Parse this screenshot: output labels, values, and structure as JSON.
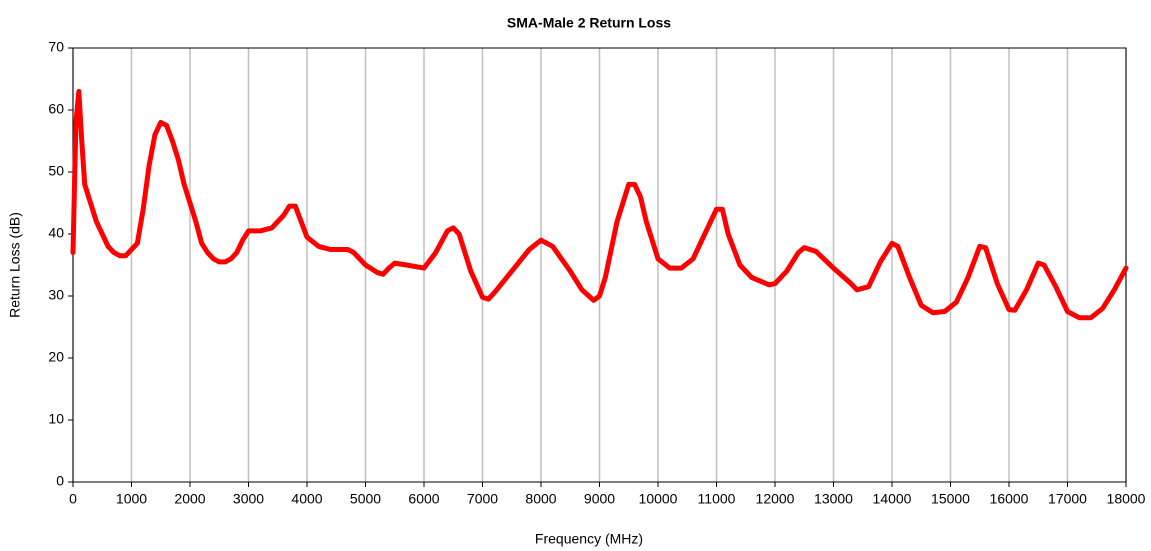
{
  "chart_data": {
    "type": "line",
    "title": "SMA-Male 2 Return Loss",
    "xlabel": "Frequency (MHz)",
    "ylabel": "Return Loss (dB)",
    "x": [
      0,
      50,
      100,
      150,
      200,
      300,
      400,
      500,
      600,
      700,
      800,
      900,
      1000,
      1100,
      1200,
      1300,
      1400,
      1500,
      1600,
      1700,
      1800,
      1900,
      2000,
      2100,
      2200,
      2300,
      2400,
      2500,
      2600,
      2700,
      2800,
      2900,
      3000,
      3200,
      3400,
      3600,
      3700,
      3800,
      3900,
      4000,
      4200,
      4400,
      4700,
      4800,
      5000,
      5200,
      5300,
      5400,
      5500,
      5700,
      6000,
      6200,
      6400,
      6500,
      6600,
      6800,
      7000,
      7100,
      7200,
      7500,
      7800,
      8000,
      8200,
      8500,
      8700,
      8900,
      9000,
      9100,
      9300,
      9500,
      9600,
      9700,
      9800,
      10000,
      10200,
      10400,
      10600,
      10800,
      11000,
      11100,
      11200,
      11400,
      11600,
      11900,
      12000,
      12200,
      12400,
      12500,
      12700,
      13000,
      13300,
      13400,
      13600,
      13800,
      14000,
      14100,
      14300,
      14500,
      14700,
      14900,
      15100,
      15300,
      15500,
      15600,
      15800,
      16000,
      16100,
      16300,
      16500,
      16600,
      16800,
      17000,
      17200,
      17400,
      17600,
      17800,
      18000
    ],
    "series": [
      {
        "name": "Return Loss",
        "color": "#ff0000",
        "values": [
          37,
          58,
          63,
          55,
          48,
          45,
          42,
          40,
          38,
          37,
          36.5,
          36.5,
          37.5,
          38.5,
          44,
          51,
          56,
          58,
          57.5,
          55,
          52,
          48,
          45,
          42,
          38.5,
          37,
          36,
          35.5,
          35.5,
          36,
          37,
          39,
          40.5,
          40.5,
          41,
          43,
          44.5,
          44.5,
          42,
          39.5,
          38,
          37.5,
          37.5,
          37,
          35,
          33.8,
          33.5,
          34.5,
          35.3,
          35,
          34.5,
          37,
          40.5,
          41,
          40,
          34,
          29.8,
          29.5,
          30.5,
          34,
          37.5,
          39,
          38,
          34,
          31,
          29.3,
          30,
          33,
          42,
          48,
          48,
          46,
          42,
          36,
          34.5,
          34.5,
          36,
          40,
          44,
          44,
          40,
          35,
          33,
          31.8,
          32,
          34,
          37,
          37.8,
          37.2,
          34.5,
          32,
          31,
          31.5,
          35.5,
          38.5,
          38,
          33,
          28.5,
          27.3,
          27.5,
          29,
          33,
          38,
          37.8,
          32,
          27.8,
          27.7,
          31,
          35.3,
          35,
          31.5,
          27.5,
          26.5,
          26.5,
          28,
          31,
          34.5
        ]
      }
    ],
    "xlim": [
      0,
      18000
    ],
    "xticks": [
      0,
      1000,
      2000,
      3000,
      4000,
      5000,
      6000,
      7000,
      8000,
      9000,
      10000,
      11000,
      12000,
      13000,
      14000,
      15000,
      16000,
      17000,
      18000
    ],
    "ylim": [
      0,
      70
    ],
    "yticks": [
      0,
      10,
      20,
      30,
      40,
      50,
      60,
      70
    ],
    "grid": "x"
  }
}
